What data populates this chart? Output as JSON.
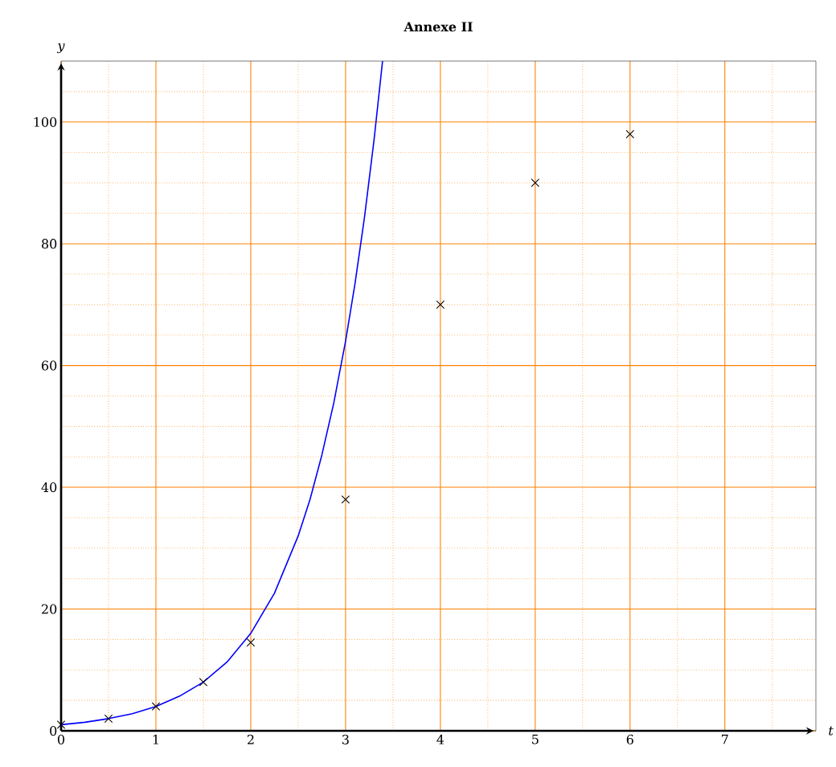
{
  "chart_data": {
    "type": "scatter",
    "title": "Annexe II",
    "xlabel": "t",
    "ylabel": "y",
    "xlim": [
      0,
      7.96
    ],
    "ylim": [
      0,
      110
    ],
    "xticks": [
      0,
      {
        "value": 0.5,
        "label": null
      },
      1,
      {
        "value": 1.5,
        "label": null
      },
      2,
      {
        "value": 2.5,
        "label": null
      },
      3,
      {
        "value": 3.5,
        "label": null
      },
      4,
      {
        "value": 4.5,
        "label": null
      },
      5,
      {
        "value": 5.5,
        "label": null
      },
      6,
      {
        "value": 6.5,
        "label": null
      },
      7,
      {
        "value": 7.5,
        "label": null
      }
    ],
    "yticks": [
      0,
      {
        "value": 5,
        "label": null
      },
      {
        "value": 10,
        "label": null
      },
      {
        "value": 15,
        "label": null
      },
      20,
      {
        "value": 25,
        "label": null
      },
      {
        "value": 30,
        "label": null
      },
      {
        "value": 35,
        "label": null
      },
      40,
      {
        "value": 45,
        "label": null
      },
      {
        "value": 50,
        "label": null
      },
      {
        "value": 55,
        "label": null
      },
      60,
      {
        "value": 65,
        "label": null
      },
      {
        "value": 70,
        "label": null
      },
      {
        "value": 75,
        "label": null
      },
      80,
      {
        "value": 85,
        "label": null
      },
      {
        "value": 90,
        "label": null
      },
      {
        "value": 95,
        "label": null
      },
      100,
      {
        "value": 105,
        "label": null
      }
    ],
    "grid": true,
    "series": [
      {
        "type": "line",
        "color": "#0000ff",
        "marker": "none",
        "x": [
          0,
          0.25,
          0.5,
          0.75,
          1,
          1.25,
          1.5,
          1.75,
          2,
          2.25,
          2.5,
          2.625,
          2.75,
          2.875,
          3,
          3.1,
          3.2,
          3.3,
          3.39
        ],
        "values": [
          1,
          1.4,
          2,
          2.8,
          4,
          5.7,
          8,
          11.3,
          16,
          22.6,
          32,
          38,
          45.3,
          53.8,
          64,
          73.5,
          84.4,
          97,
          110
        ]
      },
      {
        "color": "#000000",
        "marker": "cross",
        "x": [
          0,
          0.5,
          1,
          1.5,
          2,
          3,
          4,
          5,
          6
        ],
        "values": [
          1,
          2,
          4,
          8,
          14.5,
          38,
          70,
          90,
          98
        ]
      }
    ]
  }
}
